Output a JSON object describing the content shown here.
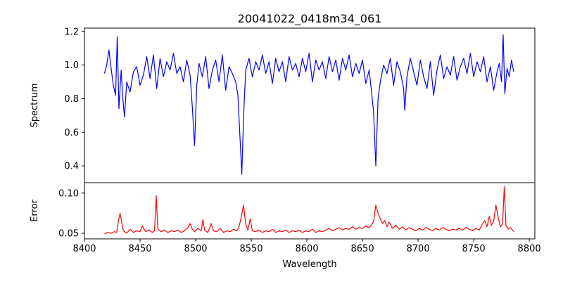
{
  "chart_data": [
    {
      "type": "line",
      "title": "20041022_0418m34_061",
      "xlabel": "",
      "ylabel": "Spectrum",
      "xlim": [
        8400,
        8805
      ],
      "ylim": [
        0.3,
        1.22
      ],
      "yticks": [
        0.4,
        0.6,
        0.8,
        1.0,
        1.2
      ],
      "ytick_labels": [
        "0.4",
        "0.6",
        "0.8",
        "1.0",
        "1.2"
      ],
      "grid": false,
      "color": "#0000ff",
      "series": [
        {
          "x": [
            8418,
            8420,
            8422,
            8424,
            8426,
            8428,
            8429.5,
            8431,
            8433,
            8434.5,
            8436,
            8438,
            8441,
            8444,
            8447,
            8450,
            8453,
            8456,
            8459,
            8462,
            8465,
            8468,
            8471,
            8474,
            8477,
            8480,
            8483,
            8486,
            8489,
            8492,
            8495,
            8497,
            8499,
            8501,
            8503,
            8506,
            8509,
            8512,
            8515,
            8518,
            8521,
            8524,
            8527,
            8530,
            8533,
            8536,
            8538,
            8540,
            8541.5,
            8543,
            8545,
            8548,
            8551,
            8554,
            8557,
            8560,
            8563,
            8566,
            8569,
            8572,
            8575,
            8578,
            8581,
            8584,
            8587,
            8590,
            8593,
            8596,
            8599,
            8602,
            8605,
            8608,
            8611,
            8614,
            8617,
            8620,
            8623,
            8626,
            8629,
            8632,
            8635,
            8638,
            8641,
            8644,
            8647,
            8650,
            8653,
            8656,
            8658,
            8660,
            8662,
            8664,
            8666,
            8669,
            8672,
            8675,
            8678,
            8681,
            8684,
            8687,
            8688,
            8690,
            8693,
            8696,
            8699,
            8702,
            8705,
            8708,
            8711,
            8714,
            8717,
            8720,
            8723,
            8726,
            8729,
            8732,
            8735,
            8738,
            8741,
            8744,
            8747,
            8750,
            8753,
            8756,
            8759,
            8762,
            8765,
            8768,
            8771,
            8773,
            8775,
            8776.5,
            8778,
            8780,
            8782,
            8784,
            8786
          ],
          "y": [
            0.95,
            1.0,
            1.09,
            0.98,
            0.88,
            0.82,
            1.17,
            0.74,
            0.97,
            0.8,
            0.69,
            0.9,
            0.84,
            0.96,
            0.99,
            0.88,
            0.94,
            1.05,
            0.92,
            1.06,
            0.86,
            1.04,
            0.93,
            1.02,
            0.97,
            1.07,
            0.95,
            0.99,
            0.9,
            1.03,
            0.94,
            0.75,
            0.52,
            0.88,
            1.01,
            0.93,
            1.05,
            0.86,
            0.97,
            1.03,
            0.9,
            1.06,
            0.85,
            0.99,
            0.95,
            0.9,
            0.82,
            0.55,
            0.35,
            0.68,
            0.97,
            1.04,
            0.93,
            1.02,
            0.97,
            1.06,
            0.95,
            1.02,
            0.89,
            1.04,
            0.96,
            1.02,
            0.9,
            1.05,
            0.97,
            1.01,
            0.93,
            1.04,
            0.96,
            1.07,
            0.9,
            1.03,
            0.97,
            1.02,
            0.92,
            1.05,
            0.96,
            1.03,
            0.91,
            1.04,
            0.97,
            1.06,
            0.93,
            1.01,
            0.95,
            1.03,
            0.89,
            0.97,
            0.85,
            0.72,
            0.4,
            0.8,
            0.9,
            1.0,
            0.95,
            1.04,
            0.88,
            1.02,
            0.96,
            0.86,
            0.73,
            0.93,
            1.04,
            0.96,
            0.88,
            1.03,
            0.93,
            0.86,
            1.02,
            0.82,
            0.97,
            1.06,
            0.92,
            0.99,
            0.94,
            1.05,
            0.91,
            0.99,
            1.04,
            0.95,
            1.07,
            0.93,
            1.02,
            0.96,
            1.05,
            0.9,
            0.99,
            0.85,
            0.96,
            1.01,
            0.9,
            1.18,
            0.83,
            0.98,
            0.93,
            1.03,
            0.96
          ]
        }
      ]
    },
    {
      "type": "line",
      "title": "",
      "xlabel": "Wavelength",
      "ylabel": "Error",
      "xlim": [
        8400,
        8805
      ],
      "ylim": [
        0.043,
        0.113
      ],
      "xticks": [
        8400,
        8450,
        8500,
        8550,
        8600,
        8650,
        8700,
        8750,
        8800
      ],
      "xtick_labels": [
        "8400",
        "8450",
        "8500",
        "8550",
        "8600",
        "8650",
        "8700",
        "8750",
        "8800"
      ],
      "yticks": [
        0.05,
        0.1
      ],
      "ytick_labels": [
        "0.05",
        "0.10"
      ],
      "grid": false,
      "color": "#ff0000",
      "series": [
        {
          "x": [
            8418,
            8421,
            8424,
            8427,
            8429,
            8430.5,
            8432,
            8435,
            8438,
            8441,
            8444,
            8447,
            8450,
            8452,
            8455,
            8458,
            8461,
            8463,
            8464.5,
            8466,
            8469,
            8472,
            8475,
            8478,
            8481,
            8484,
            8487,
            8490,
            8493,
            8495,
            8497,
            8499,
            8502,
            8505,
            8506.5,
            8508,
            8511,
            8514,
            8516,
            8519,
            8522,
            8525,
            8528,
            8531,
            8534,
            8537,
            8539,
            8541,
            8543,
            8545,
            8547,
            8549,
            8551,
            8554,
            8557,
            8560,
            8563,
            8566,
            8569,
            8572,
            8575,
            8578,
            8581,
            8584,
            8587,
            8590,
            8593,
            8596,
            8599,
            8602,
            8605,
            8608,
            8611,
            8614,
            8617,
            8620,
            8623,
            8626,
            8629,
            8632,
            8635,
            8638,
            8641,
            8644,
            8647,
            8650,
            8653,
            8656,
            8658,
            8660,
            8662,
            8664,
            8666,
            8668,
            8670,
            8672,
            8674,
            8677,
            8680,
            8683,
            8686,
            8689,
            8692,
            8695,
            8698,
            8701,
            8704,
            8707,
            8710,
            8713,
            8716,
            8719,
            8722,
            8725,
            8728,
            8731,
            8734,
            8737,
            8740,
            8743,
            8746,
            8749,
            8752,
            8755,
            8758,
            8760,
            8762,
            8764,
            8766,
            8768,
            8770,
            8772,
            8774,
            8776,
            8777.5,
            8779,
            8781,
            8783,
            8786
          ],
          "y": [
            0.049,
            0.051,
            0.05,
            0.052,
            0.051,
            0.065,
            0.075,
            0.053,
            0.05,
            0.055,
            0.051,
            0.053,
            0.052,
            0.059,
            0.052,
            0.054,
            0.051,
            0.053,
            0.097,
            0.055,
            0.052,
            0.054,
            0.051,
            0.053,
            0.052,
            0.054,
            0.051,
            0.053,
            0.057,
            0.062,
            0.055,
            0.052,
            0.056,
            0.053,
            0.067,
            0.054,
            0.051,
            0.062,
            0.053,
            0.052,
            0.056,
            0.051,
            0.053,
            0.052,
            0.055,
            0.053,
            0.058,
            0.07,
            0.085,
            0.062,
            0.054,
            0.068,
            0.053,
            0.052,
            0.054,
            0.051,
            0.053,
            0.052,
            0.055,
            0.051,
            0.053,
            0.052,
            0.054,
            0.051,
            0.053,
            0.052,
            0.054,
            0.051,
            0.053,
            0.052,
            0.055,
            0.051,
            0.053,
            0.052,
            0.054,
            0.056,
            0.053,
            0.055,
            0.057,
            0.054,
            0.056,
            0.055,
            0.058,
            0.055,
            0.057,
            0.056,
            0.059,
            0.057,
            0.06,
            0.065,
            0.085,
            0.075,
            0.068,
            0.062,
            0.066,
            0.058,
            0.064,
            0.056,
            0.06,
            0.055,
            0.058,
            0.054,
            0.057,
            0.055,
            0.053,
            0.056,
            0.054,
            0.057,
            0.055,
            0.053,
            0.056,
            0.054,
            0.057,
            0.055,
            0.053,
            0.055,
            0.054,
            0.056,
            0.054,
            0.057,
            0.055,
            0.053,
            0.056,
            0.054,
            0.062,
            0.066,
            0.058,
            0.071,
            0.06,
            0.065,
            0.085,
            0.07,
            0.058,
            0.062,
            0.108,
            0.06,
            0.055,
            0.057,
            0.052
          ]
        }
      ]
    }
  ]
}
